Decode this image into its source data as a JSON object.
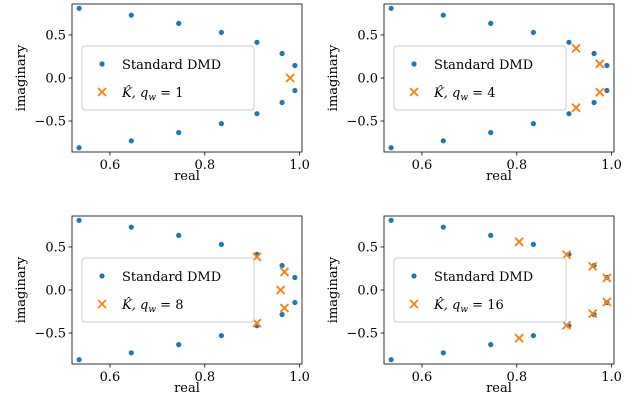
{
  "chart_data": [
    {
      "type": "scatter",
      "xlabel": "real",
      "ylabel": "imaginary",
      "xlim": [
        0.52,
        1.005
      ],
      "ylim": [
        -0.86,
        0.86
      ],
      "xticks": [
        0.6,
        0.8,
        1.0
      ],
      "xtick_labels": [
        "0.6",
        "0.8",
        "1.0"
      ],
      "yticks": [
        0.5,
        0.0,
        -0.5
      ],
      "ytick_labels": [
        "0.5",
        "0.0",
        "−0.5"
      ],
      "legend_position": "center-left",
      "series": [
        {
          "name": "Standard DMD",
          "marker": "dot",
          "color": "#1f77b4",
          "points": [
            [
              0.535,
              0.81
            ],
            [
              0.535,
              -0.81
            ],
            [
              0.645,
              0.73
            ],
            [
              0.645,
              -0.73
            ],
            [
              0.745,
              0.635
            ],
            [
              0.745,
              -0.635
            ],
            [
              0.835,
              0.53
            ],
            [
              0.835,
              -0.53
            ],
            [
              0.91,
              0.415
            ],
            [
              0.91,
              -0.415
            ],
            [
              0.963,
              0.285
            ],
            [
              0.963,
              -0.285
            ],
            [
              0.99,
              0.145
            ],
            [
              0.99,
              -0.145
            ]
          ]
        },
        {
          "name_base": "K̂, q",
          "name_sub": "w",
          "name_eq": " = 1",
          "marker": "x",
          "color": "#ff7f0e",
          "points": [
            [
              0.98,
              0.0
            ]
          ]
        }
      ]
    },
    {
      "type": "scatter",
      "xlabel": "real",
      "ylabel": "imaginary",
      "xlim": [
        0.52,
        1.005
      ],
      "ylim": [
        -0.86,
        0.86
      ],
      "xticks": [
        0.6,
        0.8,
        1.0
      ],
      "xtick_labels": [
        "0.6",
        "0.8",
        "1.0"
      ],
      "yticks": [
        0.5,
        0.0,
        -0.5
      ],
      "ytick_labels": [
        "0.5",
        "0.0",
        "−0.5"
      ],
      "legend_position": "center-left",
      "series": [
        {
          "name": "Standard DMD",
          "marker": "dot",
          "color": "#1f77b4",
          "points": [
            [
              0.535,
              0.81
            ],
            [
              0.535,
              -0.81
            ],
            [
              0.645,
              0.73
            ],
            [
              0.645,
              -0.73
            ],
            [
              0.745,
              0.635
            ],
            [
              0.745,
              -0.635
            ],
            [
              0.835,
              0.53
            ],
            [
              0.835,
              -0.53
            ],
            [
              0.91,
              0.415
            ],
            [
              0.91,
              -0.415
            ],
            [
              0.963,
              0.285
            ],
            [
              0.963,
              -0.285
            ],
            [
              0.99,
              0.145
            ],
            [
              0.99,
              -0.145
            ]
          ]
        },
        {
          "name_base": "K̂, q",
          "name_sub": "w",
          "name_eq": " = 4",
          "marker": "x",
          "color": "#ff7f0e",
          "points": [
            [
              0.925,
              0.345
            ],
            [
              0.925,
              -0.345
            ],
            [
              0.975,
              0.165
            ],
            [
              0.975,
              -0.165
            ]
          ]
        }
      ]
    },
    {
      "type": "scatter",
      "xlabel": "real",
      "ylabel": "imaginary",
      "xlim": [
        0.52,
        1.005
      ],
      "ylim": [
        -0.86,
        0.86
      ],
      "xticks": [
        0.6,
        0.8,
        1.0
      ],
      "xtick_labels": [
        "0.6",
        "0.8",
        "1.0"
      ],
      "yticks": [
        0.5,
        0.0,
        -0.5
      ],
      "ytick_labels": [
        "0.5",
        "0.0",
        "−0.5"
      ],
      "legend_position": "center-left",
      "series": [
        {
          "name": "Standard DMD",
          "marker": "dot",
          "color": "#1f77b4",
          "points": [
            [
              0.535,
              0.81
            ],
            [
              0.535,
              -0.81
            ],
            [
              0.645,
              0.73
            ],
            [
              0.645,
              -0.73
            ],
            [
              0.745,
              0.635
            ],
            [
              0.745,
              -0.635
            ],
            [
              0.835,
              0.53
            ],
            [
              0.835,
              -0.53
            ],
            [
              0.91,
              0.415
            ],
            [
              0.91,
              -0.415
            ],
            [
              0.963,
              0.285
            ],
            [
              0.963,
              -0.285
            ],
            [
              0.99,
              0.145
            ],
            [
              0.99,
              -0.145
            ]
          ]
        },
        {
          "name_base": "K̂, q",
          "name_sub": "w",
          "name_eq": " = 8",
          "marker": "x",
          "color": "#ff7f0e",
          "points": [
            [
              0.91,
              0.385
            ],
            [
              0.91,
              -0.385
            ],
            [
              0.968,
              0.21
            ],
            [
              0.968,
              -0.21
            ],
            [
              0.96,
              0.0
            ]
          ]
        }
      ]
    },
    {
      "type": "scatter",
      "xlabel": "real",
      "ylabel": "imaginary",
      "xlim": [
        0.52,
        1.005
      ],
      "ylim": [
        -0.86,
        0.86
      ],
      "xticks": [
        0.6,
        0.8,
        1.0
      ],
      "xtick_labels": [
        "0.6",
        "0.8",
        "1.0"
      ],
      "yticks": [
        0.5,
        0.0,
        -0.5
      ],
      "ytick_labels": [
        "0.5",
        "0.0",
        "−0.5"
      ],
      "legend_position": "center-left",
      "series": [
        {
          "name": "Standard DMD",
          "marker": "dot",
          "color": "#1f77b4",
          "points": [
            [
              0.535,
              0.81
            ],
            [
              0.535,
              -0.81
            ],
            [
              0.645,
              0.73
            ],
            [
              0.645,
              -0.73
            ],
            [
              0.745,
              0.635
            ],
            [
              0.745,
              -0.635
            ],
            [
              0.835,
              0.53
            ],
            [
              0.835,
              -0.53
            ],
            [
              0.91,
              0.415
            ],
            [
              0.91,
              -0.415
            ],
            [
              0.963,
              0.285
            ],
            [
              0.963,
              -0.285
            ],
            [
              0.99,
              0.145
            ],
            [
              0.99,
              -0.145
            ]
          ]
        },
        {
          "name_base": "K̂, q",
          "name_sub": "w",
          "name_eq": " = 16",
          "marker": "x",
          "color": "#ff7f0e",
          "points": [
            [
              0.805,
              0.56
            ],
            [
              0.805,
              -0.56
            ],
            [
              0.905,
              0.41
            ],
            [
              0.905,
              -0.41
            ],
            [
              0.96,
              0.275
            ],
            [
              0.96,
              -0.275
            ],
            [
              0.99,
              0.14
            ],
            [
              0.99,
              -0.14
            ]
          ]
        }
      ]
    }
  ]
}
